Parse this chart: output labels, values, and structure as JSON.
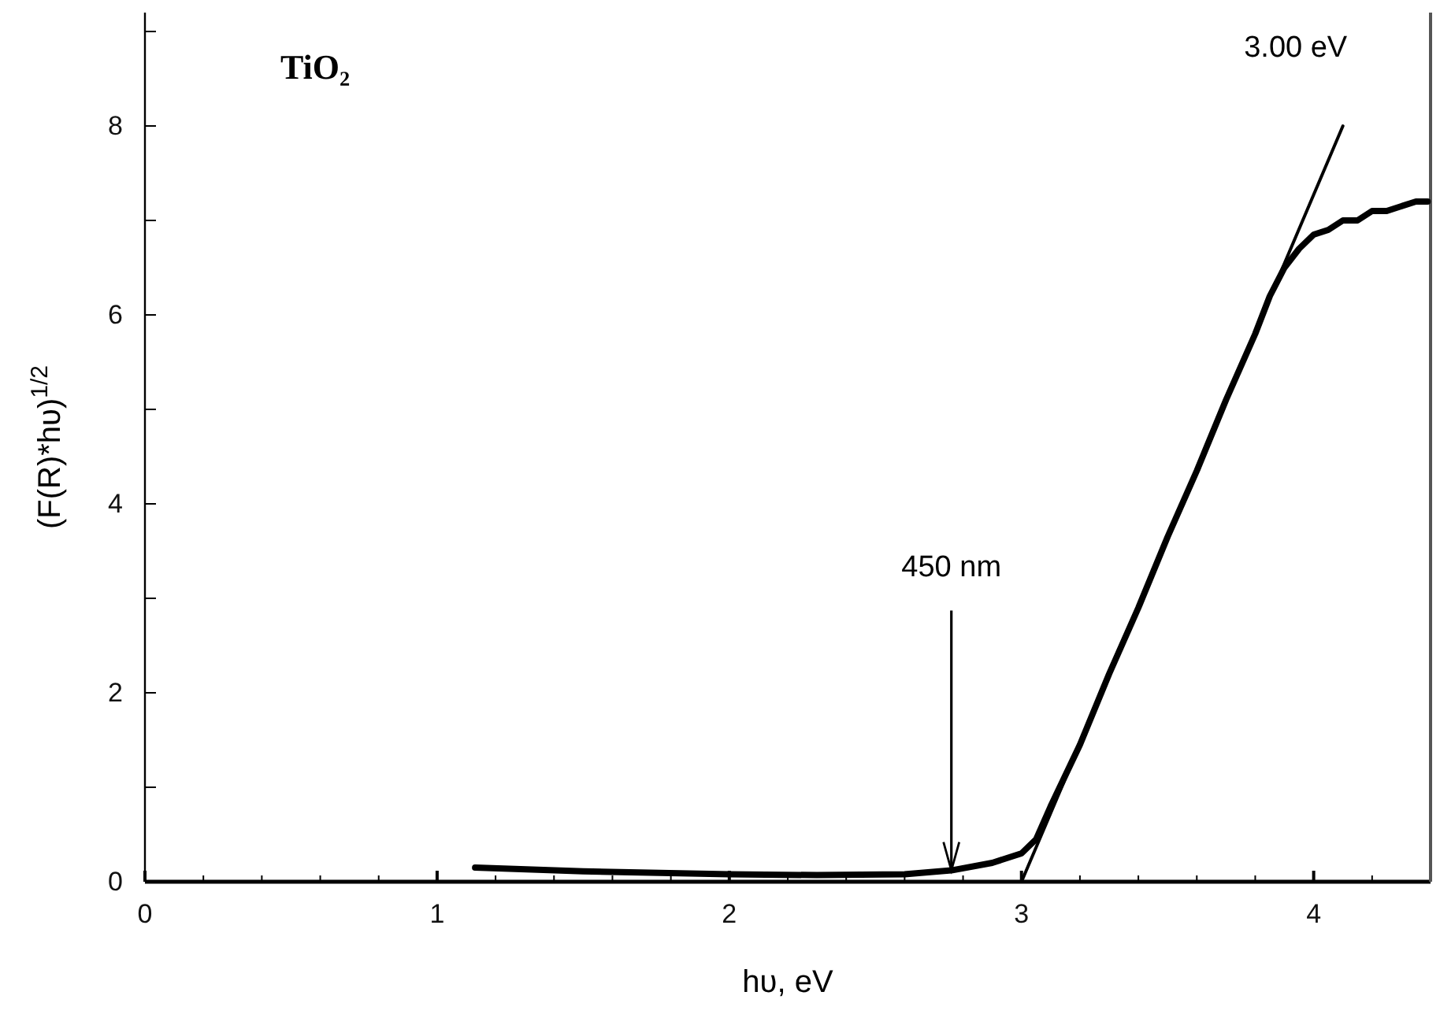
{
  "chart_data": {
    "type": "line",
    "title": "TiO₂",
    "xlabel": "hυ, eV",
    "ylabel": "(F(R)*hυ)$^{1/2}$",
    "xlim": [
      0,
      4.4
    ],
    "ylim": [
      0,
      9.2
    ],
    "xticks": [
      0,
      {
        "value": 0.2,
        "label": null
      },
      {
        "value": 0.4,
        "label": null
      },
      {
        "value": 0.6,
        "label": null
      },
      {
        "value": 0.8,
        "label": null
      },
      1,
      {
        "value": 1.2,
        "label": null
      },
      {
        "value": 1.4,
        "label": null
      },
      {
        "value": 1.6,
        "label": null
      },
      {
        "value": 1.8,
        "label": null
      },
      2,
      {
        "value": 2.2,
        "label": null
      },
      {
        "value": 2.4,
        "label": null
      },
      {
        "value": 2.6,
        "label": null
      },
      {
        "value": 2.8,
        "label": null
      },
      3,
      {
        "value": 3.2,
        "label": null
      },
      {
        "value": 3.4,
        "label": null
      },
      {
        "value": 3.6,
        "label": null
      },
      {
        "value": 3.8,
        "label": null
      },
      4,
      {
        "value": 4.2,
        "label": null
      }
    ],
    "yticks": [
      0,
      {
        "value": 1,
        "label": null
      },
      2,
      {
        "value": 3,
        "label": null
      },
      4,
      {
        "value": 5,
        "label": null
      },
      6,
      {
        "value": 7,
        "label": null
      },
      8,
      {
        "value": 9,
        "label": null
      }
    ],
    "grid": false,
    "marker": "none",
    "line_style": "solid",
    "series": [
      {
        "color": "#000000",
        "x": [
          1.13,
          1.5,
          2.0,
          2.3,
          2.6,
          2.76,
          2.9,
          3.0,
          3.05,
          3.1,
          3.2,
          3.3,
          3.4,
          3.5,
          3.6,
          3.7,
          3.8,
          3.85,
          3.9,
          3.95,
          4.0,
          4.05,
          4.1,
          4.15,
          4.2,
          4.25,
          4.3,
          4.35,
          4.39
        ],
        "values": [
          0.15,
          0.11,
          0.08,
          0.07,
          0.08,
          0.12,
          0.2,
          0.3,
          0.45,
          0.8,
          1.45,
          2.2,
          2.9,
          3.65,
          4.35,
          5.1,
          5.8,
          6.2,
          6.5,
          6.7,
          6.85,
          6.9,
          7.0,
          7.0,
          7.1,
          7.1,
          7.15,
          7.2,
          7.2
        ]
      },
      {
        "color": "#000000",
        "x": [
          3.0,
          4.1
        ],
        "values": [
          0,
          8
        ]
      }
    ],
    "annotations": [
      {
        "text": "3.00 eV",
        "x": 4.1,
        "y": 8
      },
      {
        "text": "450 nm",
        "x": 2.76,
        "y": 0.12
      }
    ]
  }
}
